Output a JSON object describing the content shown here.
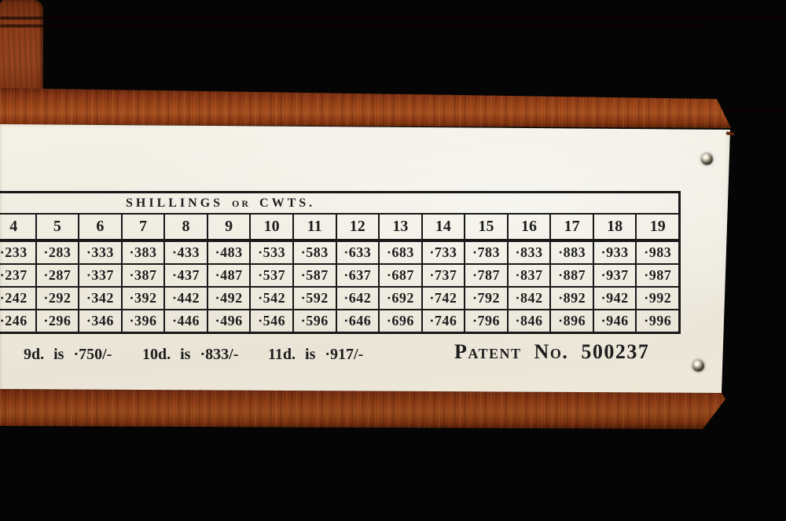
{
  "table": {
    "title": {
      "left": "SHILLINGS",
      "middle": "OR",
      "right": "CWTS."
    },
    "columns": [
      "4",
      "5",
      "6",
      "7",
      "8",
      "9",
      "10",
      "11",
      "12",
      "13",
      "14",
      "15",
      "16",
      "17",
      "18",
      "19"
    ],
    "rows": [
      [
        "·233",
        "·283",
        "·333",
        "·383",
        "·433",
        "·483",
        "·533",
        "·583",
        "·633",
        "·683",
        "·733",
        "·783",
        "·833",
        "·883",
        "·933",
        "·983"
      ],
      [
        "·237",
        "·287",
        "·337",
        "·387",
        "·437",
        "·487",
        "·537",
        "·587",
        "·637",
        "·687",
        "·737",
        "·787",
        "·837",
        "·887",
        "·937",
        "·987"
      ],
      [
        "·242",
        "·292",
        "·342",
        "·392",
        "·442",
        "·492",
        "·542",
        "·592",
        "·642",
        "·692",
        "·742",
        "·792",
        "·842",
        "·892",
        "·942",
        "·992"
      ],
      [
        "·246",
        "·296",
        "·346",
        "·396",
        "·446",
        "·496",
        "·546",
        "·596",
        "·646",
        "·696",
        "·746",
        "·796",
        "·846",
        "·896",
        "·946",
        "·996"
      ]
    ]
  },
  "footnotes": [
    {
      "text": "9d. is ·750/-"
    },
    {
      "text": "10d. is ·833/-"
    },
    {
      "text": "11d. is ·917/-"
    }
  ],
  "patent": {
    "text": "Patent No. 500237"
  },
  "colors": {
    "background": "#050505",
    "wood": "#8f3d16",
    "panel": "#ece8dc",
    "ink": "#1d1d1d"
  }
}
